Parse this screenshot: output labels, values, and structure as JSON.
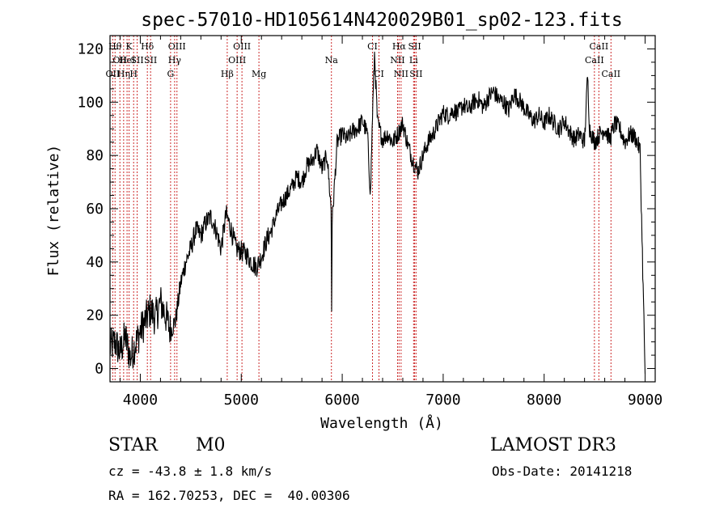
{
  "chart_data": {
    "type": "line",
    "title": "spec-57010-HD105614N420029B01_sp02-123.fits",
    "xlabel": "Wavelength (Å)",
    "ylabel": "Flux (relative)",
    "xlim": [
      3700,
      9100
    ],
    "ylim": [
      -5,
      125
    ],
    "x_ticks": [
      4000,
      5000,
      6000,
      7000,
      8000,
      9000
    ],
    "y_ticks": [
      0,
      20,
      40,
      60,
      80,
      100,
      120
    ],
    "grid": false,
    "series": [
      {
        "x": [
          3700,
          3750,
          3800,
          3850,
          3900,
          3950,
          4000,
          4050,
          4100,
          4150,
          4200,
          4250,
          4300,
          4350,
          4400,
          4450,
          4500,
          4550,
          4600,
          4650,
          4700,
          4750,
          4800,
          4850,
          4900,
          4950,
          5000,
          5050,
          5100,
          5150,
          5200,
          5250,
          5300,
          5350,
          5400,
          5450,
          5500,
          5550,
          5600,
          5650,
          5700,
          5750,
          5800,
          5850,
          5890,
          5895,
          5900,
          5950,
          6000,
          6050,
          6100,
          6150,
          6200,
          6250,
          6280,
          6300,
          6320,
          6350,
          6400,
          6450,
          6500,
          6550,
          6600,
          6650,
          6700,
          6750,
          6800,
          6850,
          6900,
          6950,
          7000,
          7050,
          7100,
          7150,
          7200,
          7250,
          7300,
          7350,
          7400,
          7450,
          7500,
          7550,
          7600,
          7650,
          7700,
          7750,
          7800,
          7850,
          7900,
          7950,
          8000,
          8050,
          8100,
          8150,
          8200,
          8250,
          8300,
          8350,
          8400,
          8430,
          8450,
          8500,
          8550,
          8600,
          8650,
          8700,
          8750,
          8800,
          8850,
          8900,
          8950,
          9000
        ],
        "y": [
          8,
          10,
          6,
          12,
          4,
          9,
          14,
          18,
          22,
          19,
          25,
          20,
          14,
          18,
          32,
          40,
          45,
          52,
          50,
          55,
          57,
          52,
          45,
          58,
          52,
          45,
          44,
          43,
          40,
          38,
          42,
          48,
          52,
          58,
          62,
          65,
          68,
          72,
          70,
          76,
          78,
          82,
          75,
          80,
          60,
          22,
          55,
          85,
          88,
          86,
          89,
          90,
          93,
          88,
          65,
          95,
          118,
          92,
          86,
          88,
          85,
          88,
          92,
          84,
          78,
          74,
          80,
          85,
          88,
          92,
          96,
          95,
          97,
          96,
          99,
          97,
          100,
          101,
          98,
          102,
          104,
          101,
          100,
          97,
          103,
          101,
          98,
          95,
          93,
          95,
          92,
          95,
          92,
          90,
          93,
          89,
          86,
          88,
          85,
          110,
          90,
          85,
          88,
          90,
          86,
          92,
          90,
          85,
          88,
          87,
          82,
          -2
        ]
      }
    ],
    "lines": [
      {
        "lambda": 3727,
        "label": "OII",
        "row": 2
      },
      {
        "lambda": 3750,
        "label": "Hθ",
        "row": 0
      },
      {
        "lambda": 3798,
        "label": "OII",
        "row": 1
      },
      {
        "lambda": 3835,
        "label": "Hη",
        "row": 2
      },
      {
        "lambda": 3869,
        "label": "HeI",
        "row": 1
      },
      {
        "lambda": 3889,
        "label": "K",
        "row": 0
      },
      {
        "lambda": 3934,
        "label": "H",
        "row": 2
      },
      {
        "lambda": 3969,
        "label": "SII",
        "row": 1
      },
      {
        "lambda": 4070,
        "label": "Hδ",
        "row": 0
      },
      {
        "lambda": 4102,
        "label": "SII",
        "row": 1
      },
      {
        "lambda": 4300,
        "label": "G",
        "row": 2
      },
      {
        "lambda": 4340,
        "label": "Hγ",
        "row": 1
      },
      {
        "lambda": 4363,
        "label": "OIII",
        "row": 0
      },
      {
        "lambda": 4861,
        "label": "Hβ",
        "row": 2
      },
      {
        "lambda": 4959,
        "label": "OIII",
        "row": 1
      },
      {
        "lambda": 5007,
        "label": "OIII",
        "row": 0
      },
      {
        "lambda": 5175,
        "label": "Mg",
        "row": 2
      },
      {
        "lambda": 5893,
        "label": "Na",
        "row": 1
      },
      {
        "lambda": 6300,
        "label": "CI",
        "row": 0
      },
      {
        "lambda": 6364,
        "label": "CI",
        "row": 2
      },
      {
        "lambda": 6548,
        "label": "NII",
        "row": 1
      },
      {
        "lambda": 6563,
        "label": "Hα",
        "row": 0
      },
      {
        "lambda": 6583,
        "label": "NII",
        "row": 2
      },
      {
        "lambda": 6707,
        "label": "Li",
        "row": 1
      },
      {
        "lambda": 6717,
        "label": "SII",
        "row": 0
      },
      {
        "lambda": 6731,
        "label": "SII",
        "row": 2
      },
      {
        "lambda": 8498,
        "label": "CaII",
        "row": 1
      },
      {
        "lambda": 8542,
        "label": "CaII",
        "row": 0
      },
      {
        "lambda": 8662,
        "label": "CaII",
        "row": 2
      }
    ]
  },
  "info": {
    "class": "STAR",
    "subclass": "M0",
    "survey": "LAMOST DR3",
    "cz": "cz = -43.8 ± 1.8 km/s",
    "obs_date": "Obs-Date: 20141218",
    "coords": "RA = 162.70253, DEC =  40.00306"
  }
}
